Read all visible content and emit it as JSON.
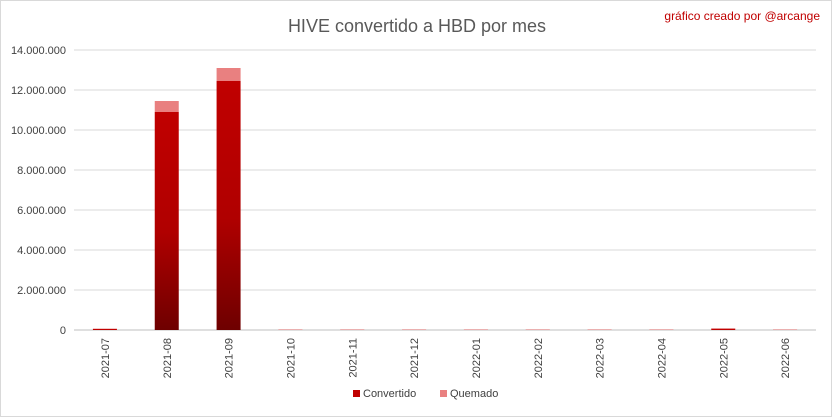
{
  "chart_data": {
    "type": "bar",
    "stacked": true,
    "title": "HIVE convertido a HBD por mes",
    "credit": "gráfico creado por @arcange",
    "xlabel": "",
    "ylabel": "",
    "categories": [
      "2021-07",
      "2021-08",
      "2021-09",
      "2021-10",
      "2021-11",
      "2021-12",
      "2022-01",
      "2022-02",
      "2022-03",
      "2022-04",
      "2022-05",
      "2022-06"
    ],
    "series": [
      {
        "name": "Convertido",
        "color": "#c00000",
        "values": [
          60000,
          10900000,
          12450000,
          10000,
          10000,
          10000,
          10000,
          10000,
          10000,
          10000,
          70000,
          10000
        ]
      },
      {
        "name": "Quemado",
        "color": "#e98080",
        "values": [
          5000,
          550000,
          650000,
          20000,
          20000,
          20000,
          20000,
          20000,
          20000,
          20000,
          10000,
          20000
        ]
      }
    ],
    "ylim": [
      0,
      14000000
    ],
    "yticks": [
      0,
      2000000,
      4000000,
      6000000,
      8000000,
      10000000,
      12000000,
      14000000
    ],
    "ytick_labels": [
      "0",
      "2.000.000",
      "4.000.000",
      "6.000.000",
      "8.000.000",
      "10.000.000",
      "12.000.000",
      "14.000.000"
    ],
    "grid": true,
    "legend_position": "bottom"
  }
}
